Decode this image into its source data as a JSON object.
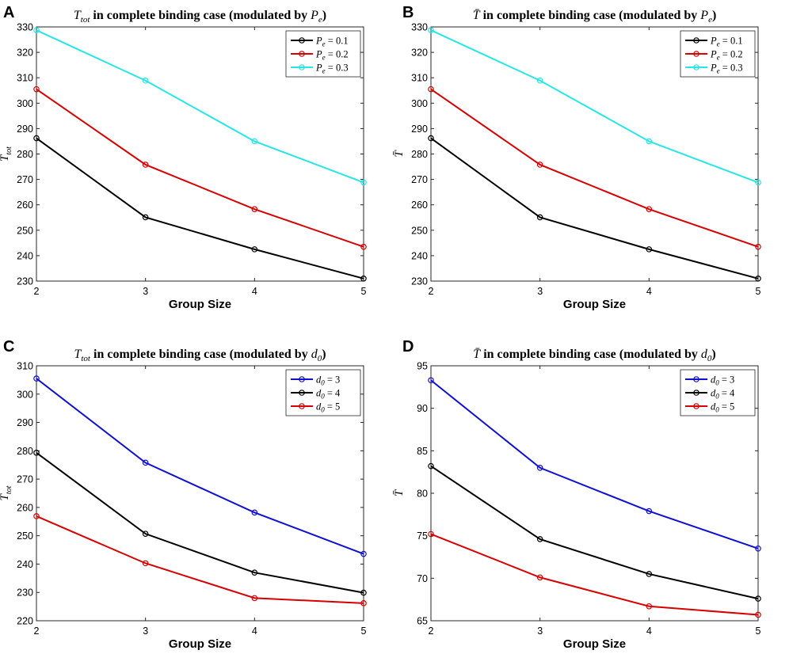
{
  "chart_data": [
    {
      "panel": "A",
      "type": "line",
      "title": "T_tot in complete binding case (modulated by P_e)",
      "title_parts": {
        "symbol": "T",
        "sub": "tot",
        "text": " in complete binding case (modulated by ",
        "param": "P",
        "param_sub": "e",
        "close": ")"
      },
      "xlabel": "Group Size",
      "ylabel": "T",
      "ylabel_sub": "tot",
      "ylabel_bar": false,
      "x": [
        2,
        3,
        4,
        5
      ],
      "xlim": [
        2,
        5
      ],
      "ylim": [
        230,
        330
      ],
      "yticks": [
        230,
        240,
        250,
        260,
        270,
        280,
        290,
        300,
        310,
        320,
        330
      ],
      "legend_position": "top-right",
      "series": [
        {
          "name": "P_e = 0.1",
          "label_main": "P",
          "label_sub": "e",
          "label_val": " = 0.1",
          "color": "#000000",
          "values": [
            286.2,
            255.1,
            242.5,
            231.0
          ]
        },
        {
          "name": "P_e = 0.2",
          "label_main": "P",
          "label_sub": "e",
          "label_val": " = 0.2",
          "color": "#d60000",
          "values": [
            305.5,
            275.8,
            258.3,
            243.5
          ]
        },
        {
          "name": "P_e = 0.3",
          "label_main": "P",
          "label_sub": "e",
          "label_val": " = 0.3",
          "color": "#29e6e6",
          "values": [
            328.7,
            308.9,
            285.0,
            268.8
          ]
        }
      ]
    },
    {
      "panel": "B",
      "type": "line",
      "title": "T̄ in complete binding case (modulated by P_e)",
      "title_parts": {
        "symbol": "T̄",
        "sub": "",
        "text": " in complete binding case (modulated by ",
        "param": "P",
        "param_sub": "e",
        "close": ")"
      },
      "xlabel": "Group Size",
      "ylabel": "T̄",
      "ylabel_sub": "",
      "ylabel_bar": true,
      "x": [
        2,
        3,
        4,
        5
      ],
      "xlim": [
        2,
        5
      ],
      "ylim": [
        230,
        330
      ],
      "yticks": [
        230,
        240,
        250,
        260,
        270,
        280,
        290,
        300,
        310,
        320,
        330
      ],
      "legend_position": "top-right",
      "series": [
        {
          "name": "P_e = 0.1",
          "label_main": "P",
          "label_sub": "e",
          "label_val": " = 0.1",
          "color": "#000000",
          "values": [
            286.2,
            255.1,
            242.5,
            231.0
          ]
        },
        {
          "name": "P_e = 0.2",
          "label_main": "P",
          "label_sub": "e",
          "label_val": " = 0.2",
          "color": "#d60000",
          "values": [
            305.5,
            275.8,
            258.3,
            243.5
          ]
        },
        {
          "name": "P_e = 0.3",
          "label_main": "P",
          "label_sub": "e",
          "label_val": " = 0.3",
          "color": "#29e6e6",
          "values": [
            328.7,
            308.9,
            285.0,
            268.8
          ]
        }
      ]
    },
    {
      "panel": "C",
      "type": "line",
      "title": "T_tot in complete binding case (modulated by d_0)",
      "title_parts": {
        "symbol": "T",
        "sub": "tot",
        "text": " in complete binding case (modulated by ",
        "param": "d",
        "param_sub": "0",
        "close": ")"
      },
      "xlabel": "Group Size",
      "ylabel": "T",
      "ylabel_sub": "tot",
      "ylabel_bar": false,
      "x": [
        2,
        3,
        4,
        5
      ],
      "xlim": [
        2,
        5
      ],
      "ylim": [
        220,
        310
      ],
      "yticks": [
        220,
        230,
        240,
        250,
        260,
        270,
        280,
        290,
        300,
        310
      ],
      "legend_position": "top-right",
      "series": [
        {
          "name": "d_0 = 3",
          "label_main": "d",
          "label_sub": "0",
          "label_val": " = 3",
          "color": "#1010d0",
          "values": [
            305.5,
            275.8,
            258.2,
            243.6
          ]
        },
        {
          "name": "d_0 = 4",
          "label_main": "d",
          "label_sub": "0",
          "label_val": " = 4",
          "color": "#000000",
          "values": [
            279.3,
            250.7,
            237.0,
            229.9
          ]
        },
        {
          "name": "d_0 = 5",
          "label_main": "d",
          "label_sub": "0",
          "label_val": " = 5",
          "color": "#d60000",
          "values": [
            256.9,
            240.3,
            228.0,
            226.2
          ]
        }
      ]
    },
    {
      "panel": "D",
      "type": "line",
      "title": "T̄ in complete binding case (modulated by d_0)",
      "title_parts": {
        "symbol": "T̄",
        "sub": "",
        "text": " in complete binding case (modulated by ",
        "param": "d",
        "param_sub": "0",
        "close": ")"
      },
      "xlabel": "Group Size",
      "ylabel": "T̄",
      "ylabel_sub": "",
      "ylabel_bar": true,
      "x": [
        2,
        3,
        4,
        5
      ],
      "xlim": [
        2,
        5
      ],
      "ylim": [
        65,
        95
      ],
      "yticks": [
        65,
        70,
        75,
        80,
        85,
        90,
        95
      ],
      "legend_position": "top-right",
      "series": [
        {
          "name": "d_0 = 3",
          "label_main": "d",
          "label_sub": "0",
          "label_val": " = 3",
          "color": "#1010d0",
          "values": [
            93.3,
            83.0,
            77.9,
            73.5
          ]
        },
        {
          "name": "d_0 = 4",
          "label_main": "d",
          "label_sub": "0",
          "label_val": " = 4",
          "color": "#000000",
          "values": [
            83.2,
            74.6,
            70.5,
            67.6
          ]
        },
        {
          "name": "d_0 = 5",
          "label_main": "d",
          "label_sub": "0",
          "label_val": " = 5",
          "color": "#d60000",
          "values": [
            75.2,
            70.1,
            66.7,
            65.7
          ]
        }
      ]
    }
  ]
}
